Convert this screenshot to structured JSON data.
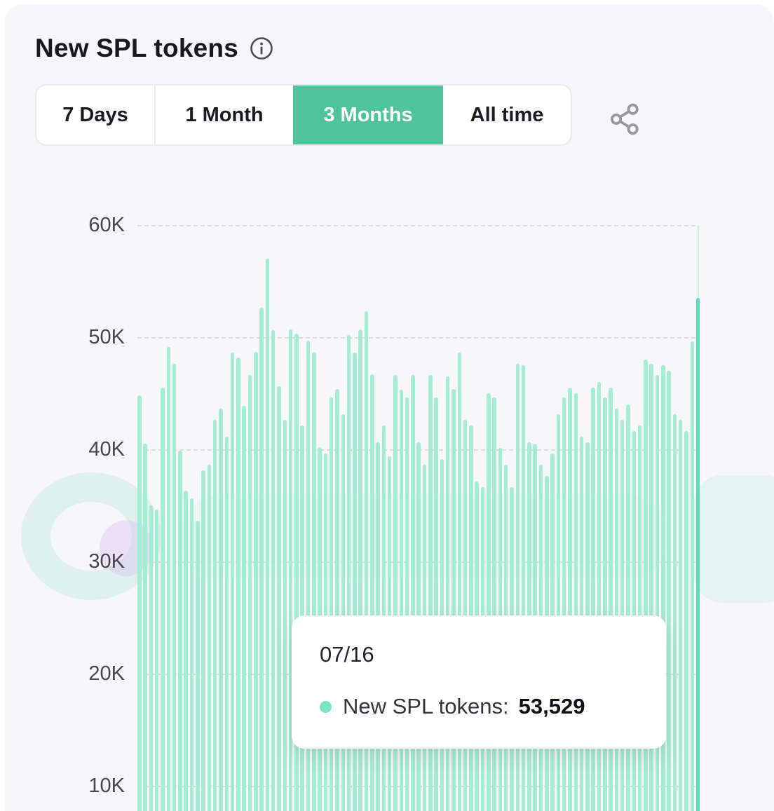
{
  "header": {
    "title": "New SPL tokens"
  },
  "tabs": {
    "items": [
      {
        "label": "7 Days",
        "selected": false
      },
      {
        "label": "1 Month",
        "selected": false
      },
      {
        "label": "3 Months",
        "selected": true
      },
      {
        "label": "All time",
        "selected": false
      }
    ],
    "selected_color": "#4fc39c"
  },
  "icons": {
    "info": "info-icon",
    "share": "share-icon"
  },
  "tooltip": {
    "date": "07/16",
    "label": "New SPL tokens:",
    "value": "53,529"
  },
  "chart_data": {
    "type": "bar",
    "title": "New SPL tokens",
    "series_name": "New SPL tokens",
    "xlabel": "",
    "ylabel": "",
    "ylim": [
      0,
      60000
    ],
    "y_ticks": [
      "60K",
      "50K",
      "40K",
      "30K",
      "20K",
      "10K"
    ],
    "y_tick_values": [
      60000,
      50000,
      40000,
      30000,
      20000,
      10000
    ],
    "grid": "dashed-horizontal",
    "bar_color": "#a5ecd4",
    "highlight_color": "#5fdab4",
    "highlight_index": 96,
    "highlight_date": "07/16",
    "highlight_value": 53529,
    "values": [
      44800,
      40500,
      35000,
      34600,
      45500,
      49100,
      47600,
      39900,
      36300,
      35600,
      33600,
      38100,
      38600,
      42600,
      43600,
      41100,
      48600,
      48200,
      43900,
      46600,
      48700,
      52600,
      57000,
      50600,
      45600,
      42600,
      50700,
      50300,
      42100,
      49700,
      48600,
      40200,
      39600,
      44600,
      45400,
      43100,
      50200,
      48600,
      50700,
      52300,
      46700,
      40600,
      42100,
      39400,
      46600,
      45300,
      44600,
      46600,
      40600,
      38600,
      46600,
      44600,
      39100,
      46500,
      45400,
      48600,
      42600,
      42100,
      37100,
      36600,
      45000,
      44600,
      40100,
      38600,
      36600,
      47600,
      47500,
      40600,
      40500,
      38600,
      37600,
      39600,
      43100,
      44600,
      45500,
      45000,
      41100,
      40600,
      45500,
      46000,
      44600,
      45500,
      43600,
      42600,
      44000,
      41600,
      42100,
      48000,
      47600,
      46600,
      47500,
      47000,
      43100,
      42600,
      41600,
      49600,
      53529
    ]
  }
}
